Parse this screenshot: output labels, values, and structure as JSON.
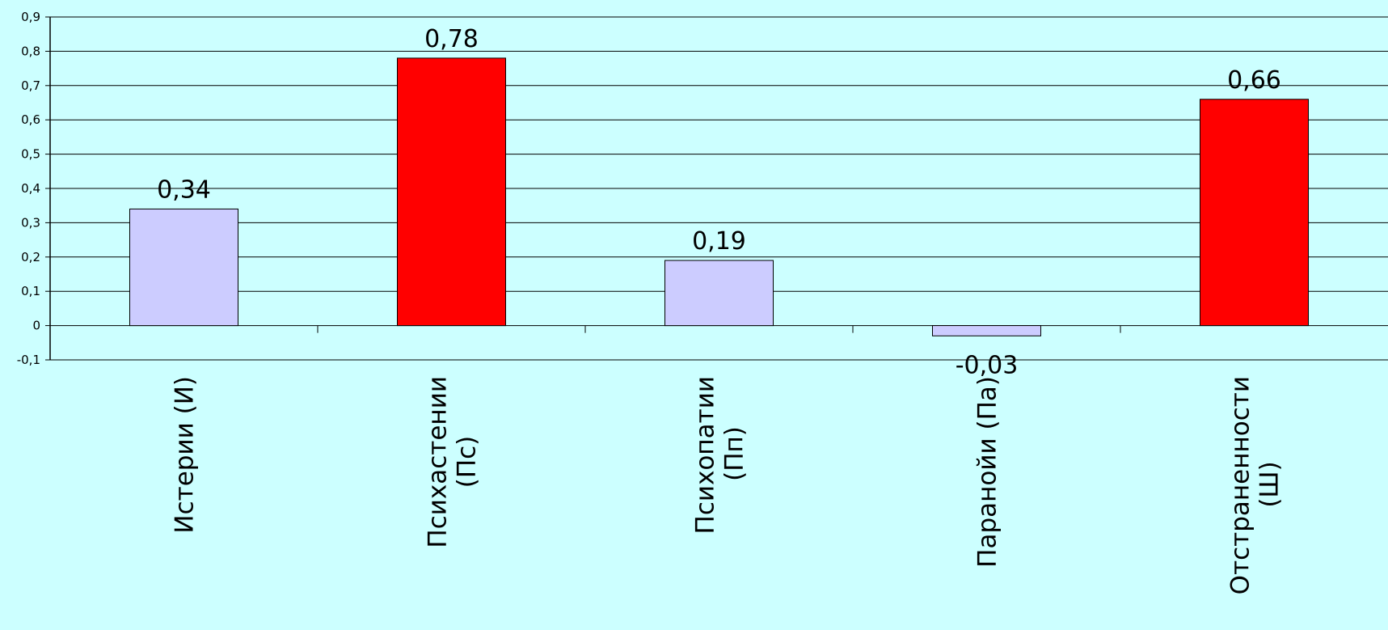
{
  "colors": {
    "background": "#ccffff",
    "highlight_bar": "#ff0000",
    "normal_bar": "#ccccff",
    "gridline": "#000000",
    "bar_border": "#000000"
  },
  "chart_data": {
    "type": "bar",
    "title": "",
    "xlabel": "",
    "ylabel": "",
    "ylim": [
      -0.1,
      0.9
    ],
    "grid": true,
    "legend": "none",
    "yticks": [
      {
        "value": 0.9,
        "label": "0,9"
      },
      {
        "value": 0.8,
        "label": "0,8"
      },
      {
        "value": 0.7,
        "label": "0,7"
      },
      {
        "value": 0.6,
        "label": "0,6"
      },
      {
        "value": 0.5,
        "label": "0,5"
      },
      {
        "value": 0.4,
        "label": "0,4"
      },
      {
        "value": 0.3,
        "label": "0,3"
      },
      {
        "value": 0.2,
        "label": "0,2"
      },
      {
        "value": 0.1,
        "label": "0,1"
      },
      {
        "value": 0,
        "label": "0"
      },
      {
        "value": -0.1,
        "label": "-0,1"
      }
    ],
    "categories": [
      {
        "lines": [
          "Истерии (И)"
        ]
      },
      {
        "lines": [
          "Психастении",
          "(Пс)"
        ]
      },
      {
        "lines": [
          "Психопатии",
          "(Пп)"
        ]
      },
      {
        "lines": [
          "Паранойи (Па)"
        ]
      },
      {
        "lines": [
          "Отстраненности",
          "(Ш)"
        ]
      }
    ],
    "values": [
      0.34,
      0.78,
      0.19,
      -0.03,
      0.66
    ],
    "value_labels": [
      "0,34",
      "0,78",
      "0,19",
      "-0,03",
      "0,66"
    ],
    "highlighted": [
      false,
      true,
      false,
      false,
      true
    ]
  }
}
